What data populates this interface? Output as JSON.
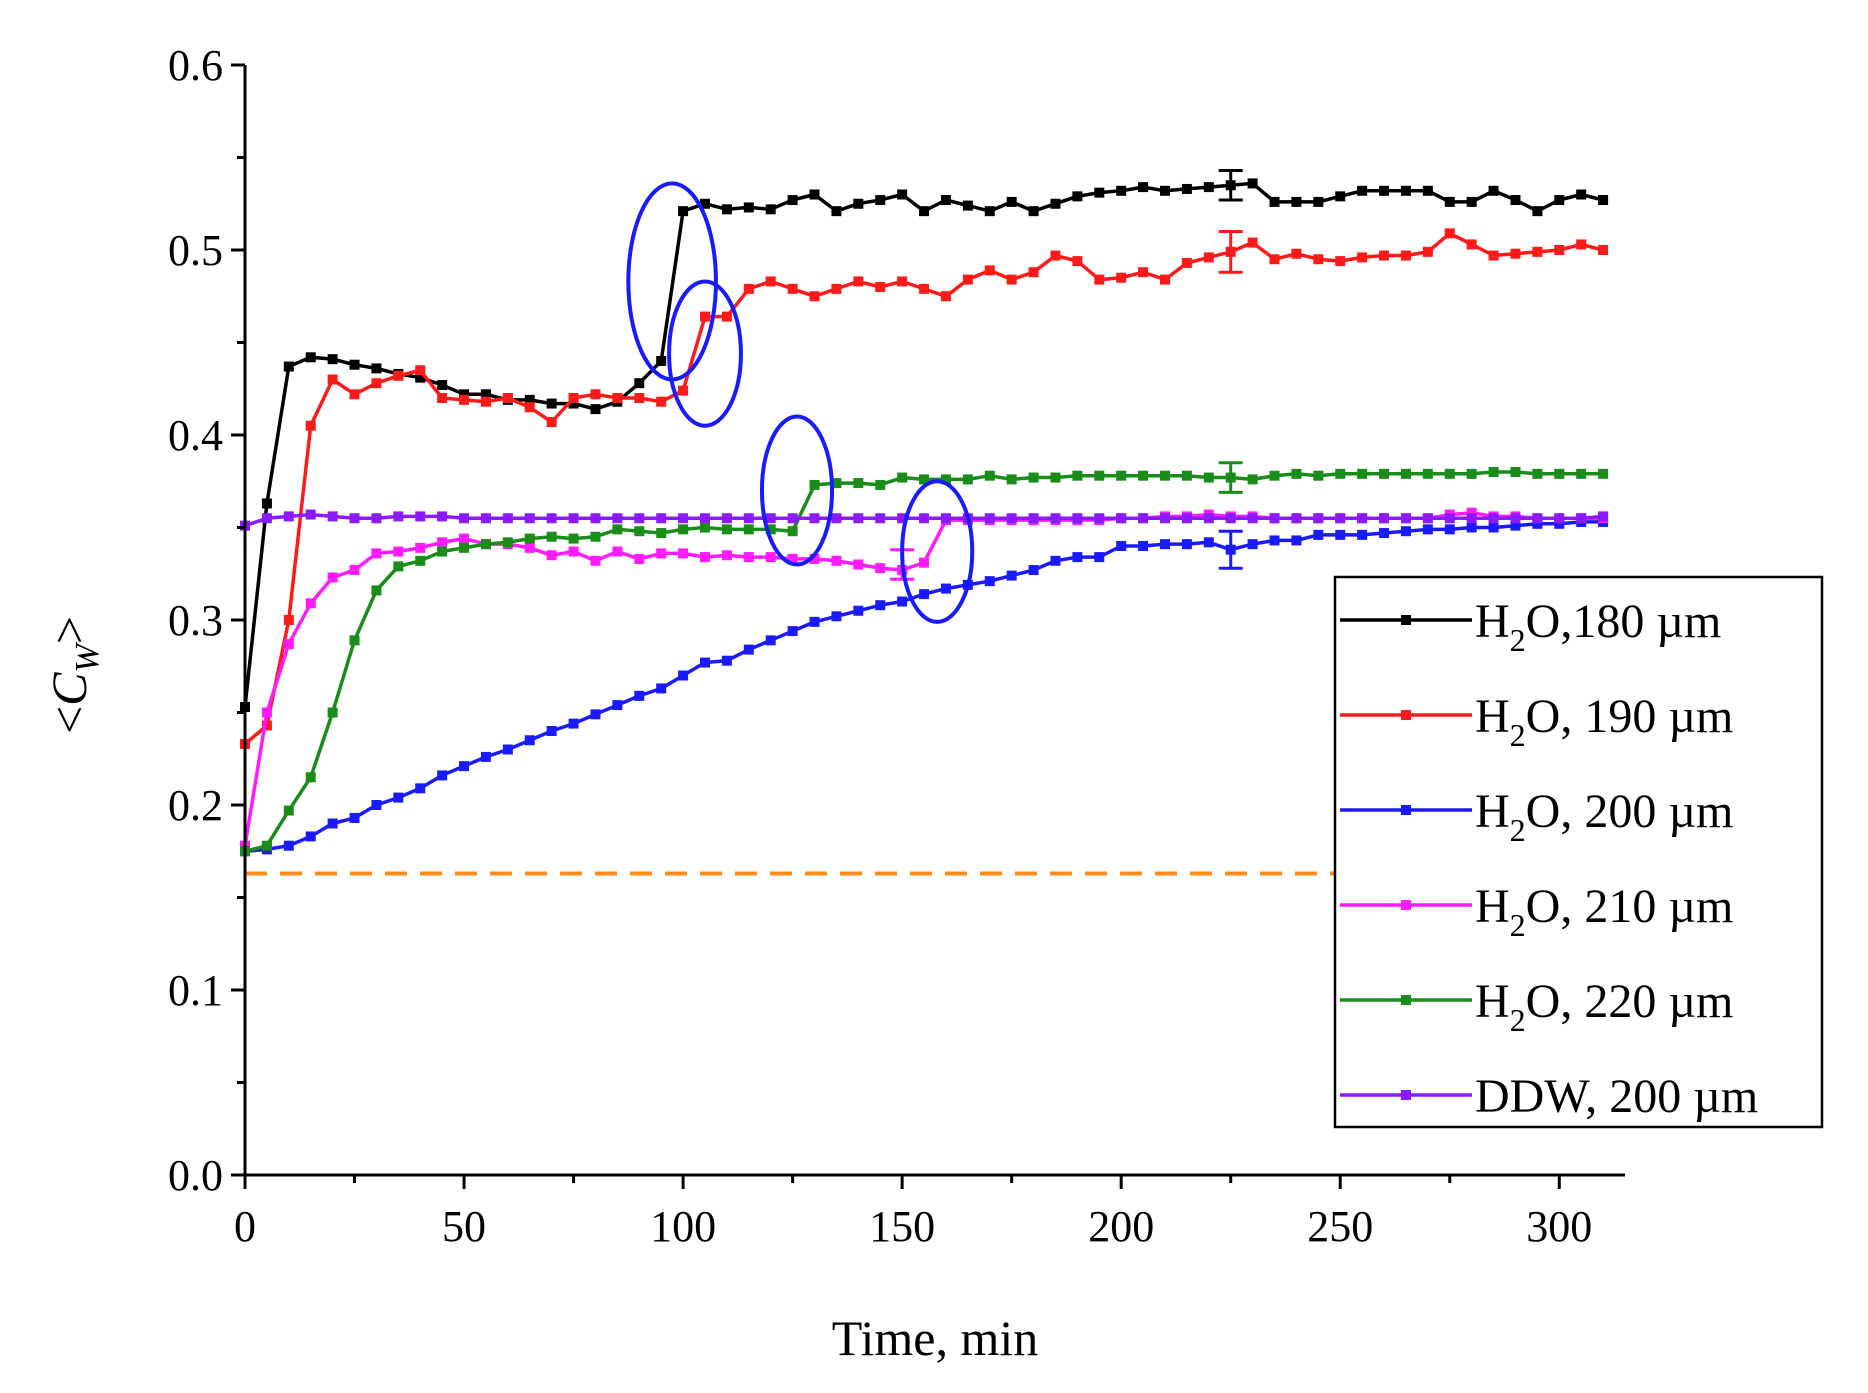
{
  "chart_data": {
    "type": "line",
    "title": "",
    "xlabel": "Time, min",
    "ylabel": "<C_W>",
    "ylabel_parts": {
      "open": "<",
      "var": "C",
      "sub": "W",
      "close": ">"
    },
    "xlim": [
      0,
      315
    ],
    "ylim": [
      0,
      0.6
    ],
    "xticks": [
      "0",
      "50",
      "100",
      "150",
      "200",
      "250",
      "300"
    ],
    "yticks": [
      "0.0",
      "0.1",
      "0.2",
      "0.3",
      "0.4",
      "0.5",
      "0.6"
    ],
    "grid": false,
    "legend_position": "right",
    "reference_line": {
      "y": 0.163,
      "x_range": [
        0,
        250
      ],
      "color": "#ff8c1a",
      "style": "dashed"
    },
    "series": [
      {
        "name": "H2O,180 µm",
        "legend": {
          "a": "H",
          "sub": "2",
          "b": "O,180 µm"
        },
        "color": "#000000",
        "x": [
          0,
          5,
          10,
          15,
          20,
          25,
          30,
          35,
          40,
          45,
          50,
          55,
          60,
          65,
          70,
          75,
          80,
          85,
          90,
          95,
          100,
          105,
          110,
          115,
          120,
          125,
          130,
          135,
          140,
          145,
          150,
          155,
          160,
          165,
          170,
          175,
          180,
          185,
          190,
          195,
          200,
          205,
          210,
          215,
          220,
          225,
          230,
          235,
          240,
          245,
          250,
          255,
          260,
          265,
          270,
          275,
          280,
          285,
          290,
          295,
          300,
          305,
          310
        ],
        "y": [
          0.253,
          0.363,
          0.437,
          0.442,
          0.441,
          0.438,
          0.436,
          0.433,
          0.431,
          0.427,
          0.422,
          0.422,
          0.419,
          0.419,
          0.417,
          0.417,
          0.414,
          0.418,
          0.428,
          0.44,
          0.521,
          0.525,
          0.522,
          0.523,
          0.522,
          0.527,
          0.53,
          0.521,
          0.525,
          0.527,
          0.53,
          0.521,
          0.527,
          0.524,
          0.521,
          0.526,
          0.521,
          0.525,
          0.529,
          0.531,
          0.532,
          0.534,
          0.532,
          0.533,
          0.534,
          0.535,
          0.536,
          0.526,
          0.526,
          0.526,
          0.529,
          0.532,
          0.532,
          0.532,
          0.532,
          0.526,
          0.526,
          0.532,
          0.527,
          0.521,
          0.527,
          0.53,
          0.527
        ],
        "error_bars": [
          {
            "x": 225,
            "y": 0.535,
            "err": 0.008
          }
        ]
      },
      {
        "name": "H2O, 190 µm",
        "legend": {
          "a": "H",
          "sub": "2",
          "b": "O, 190 µm"
        },
        "color": "#ff1a1a",
        "x": [
          0,
          5,
          10,
          15,
          20,
          25,
          30,
          35,
          40,
          45,
          50,
          55,
          60,
          65,
          70,
          75,
          80,
          85,
          90,
          95,
          100,
          105,
          110,
          115,
          120,
          125,
          130,
          135,
          140,
          145,
          150,
          155,
          160,
          165,
          170,
          175,
          180,
          185,
          190,
          195,
          200,
          205,
          210,
          215,
          220,
          225,
          230,
          235,
          240,
          245,
          250,
          255,
          260,
          265,
          270,
          275,
          280,
          285,
          290,
          295,
          300,
          305,
          310
        ],
        "y": [
          0.233,
          0.243,
          0.3,
          0.405,
          0.43,
          0.422,
          0.428,
          0.432,
          0.435,
          0.42,
          0.419,
          0.418,
          0.42,
          0.415,
          0.407,
          0.42,
          0.422,
          0.42,
          0.42,
          0.418,
          0.424,
          0.464,
          0.464,
          0.479,
          0.483,
          0.479,
          0.475,
          0.479,
          0.483,
          0.48,
          0.483,
          0.479,
          0.475,
          0.484,
          0.489,
          0.484,
          0.488,
          0.497,
          0.494,
          0.484,
          0.485,
          0.488,
          0.484,
          0.493,
          0.496,
          0.499,
          0.504,
          0.495,
          0.498,
          0.495,
          0.494,
          0.496,
          0.497,
          0.497,
          0.499,
          0.509,
          0.503,
          0.497,
          0.498,
          0.499,
          0.5,
          0.503,
          0.5
        ],
        "error_bars": [
          {
            "x": 225,
            "y": 0.499,
            "err": 0.011
          }
        ]
      },
      {
        "name": "H2O, 200 µm",
        "legend": {
          "a": "H",
          "sub": "2",
          "b": "O, 200 µm"
        },
        "color": "#1a1aff",
        "x": [
          0,
          5,
          10,
          15,
          20,
          25,
          30,
          35,
          40,
          45,
          50,
          55,
          60,
          65,
          70,
          75,
          80,
          85,
          90,
          95,
          100,
          105,
          110,
          115,
          120,
          125,
          130,
          135,
          140,
          145,
          150,
          155,
          160,
          165,
          170,
          175,
          180,
          185,
          190,
          195,
          200,
          205,
          210,
          215,
          220,
          225,
          230,
          235,
          240,
          245,
          250,
          255,
          260,
          265,
          270,
          275,
          280,
          285,
          290,
          295,
          300,
          305,
          310
        ],
        "y": [
          0.175,
          0.176,
          0.178,
          0.183,
          0.19,
          0.193,
          0.2,
          0.204,
          0.209,
          0.216,
          0.221,
          0.226,
          0.23,
          0.235,
          0.24,
          0.244,
          0.249,
          0.254,
          0.259,
          0.263,
          0.27,
          0.277,
          0.278,
          0.284,
          0.289,
          0.294,
          0.299,
          0.302,
          0.305,
          0.308,
          0.31,
          0.314,
          0.317,
          0.319,
          0.321,
          0.324,
          0.327,
          0.332,
          0.334,
          0.334,
          0.34,
          0.34,
          0.341,
          0.341,
          0.342,
          0.338,
          0.341,
          0.343,
          0.343,
          0.346,
          0.346,
          0.346,
          0.347,
          0.348,
          0.349,
          0.349,
          0.35,
          0.35,
          0.351,
          0.352,
          0.352,
          0.353,
          0.353
        ],
        "error_bars": [
          {
            "x": 225,
            "y": 0.338,
            "err": 0.01
          }
        ]
      },
      {
        "name": "H2O, 210 µm",
        "legend": {
          "a": "H",
          "sub": "2",
          "b": "O, 210 µm"
        },
        "color": "#ff1aff",
        "x": [
          0,
          5,
          10,
          15,
          20,
          25,
          30,
          35,
          40,
          45,
          50,
          55,
          60,
          65,
          70,
          75,
          80,
          85,
          90,
          95,
          100,
          105,
          110,
          115,
          120,
          125,
          130,
          135,
          140,
          145,
          150,
          155,
          160,
          165,
          170,
          175,
          180,
          185,
          190,
          195,
          200,
          205,
          210,
          215,
          220,
          225,
          230,
          235,
          240,
          245,
          250,
          255,
          260,
          265,
          270,
          275,
          280,
          285,
          290,
          295,
          300,
          305,
          310
        ],
        "y": [
          0.178,
          0.25,
          0.287,
          0.309,
          0.323,
          0.327,
          0.336,
          0.337,
          0.339,
          0.342,
          0.344,
          0.341,
          0.341,
          0.339,
          0.335,
          0.337,
          0.332,
          0.337,
          0.333,
          0.336,
          0.336,
          0.334,
          0.335,
          0.334,
          0.334,
          0.333,
          0.333,
          0.332,
          0.33,
          0.328,
          0.327,
          0.331,
          0.354,
          0.354,
          0.354,
          0.354,
          0.354,
          0.354,
          0.354,
          0.354,
          0.355,
          0.355,
          0.356,
          0.356,
          0.357,
          0.356,
          0.356,
          0.355,
          0.355,
          0.355,
          0.355,
          0.355,
          0.355,
          0.355,
          0.355,
          0.357,
          0.358,
          0.356,
          0.356,
          0.355,
          0.355,
          0.355,
          0.355
        ],
        "error_bars": [
          {
            "x": 150,
            "y": 0.33,
            "err": 0.008
          }
        ]
      },
      {
        "name": "H2O, 220 µm",
        "legend": {
          "a": "H",
          "sub": "2",
          "b": "O, 220 µm"
        },
        "color": "#1a8c1a",
        "x": [
          0,
          5,
          10,
          15,
          20,
          25,
          30,
          35,
          40,
          45,
          50,
          55,
          60,
          65,
          70,
          75,
          80,
          85,
          90,
          95,
          100,
          105,
          110,
          115,
          120,
          125,
          130,
          135,
          140,
          145,
          150,
          155,
          160,
          165,
          170,
          175,
          180,
          185,
          190,
          195,
          200,
          205,
          210,
          215,
          220,
          225,
          230,
          235,
          240,
          245,
          250,
          255,
          260,
          265,
          270,
          275,
          280,
          285,
          290,
          295,
          300,
          305,
          310
        ],
        "y": [
          0.175,
          0.178,
          0.197,
          0.215,
          0.25,
          0.289,
          0.316,
          0.329,
          0.332,
          0.337,
          0.339,
          0.341,
          0.342,
          0.344,
          0.345,
          0.344,
          0.345,
          0.349,
          0.348,
          0.347,
          0.349,
          0.35,
          0.349,
          0.349,
          0.349,
          0.348,
          0.373,
          0.374,
          0.374,
          0.373,
          0.377,
          0.376,
          0.376,
          0.376,
          0.378,
          0.376,
          0.377,
          0.377,
          0.378,
          0.378,
          0.378,
          0.378,
          0.378,
          0.378,
          0.377,
          0.377,
          0.376,
          0.378,
          0.379,
          0.378,
          0.379,
          0.379,
          0.379,
          0.379,
          0.379,
          0.379,
          0.379,
          0.38,
          0.38,
          0.379,
          0.379,
          0.379,
          0.379
        ],
        "error_bars": [
          {
            "x": 225,
            "y": 0.377,
            "err": 0.008
          }
        ]
      },
      {
        "name": "DDW, 200 µm",
        "legend": {
          "a": "DDW, 200 µm",
          "sub": "",
          "b": ""
        },
        "color": "#8c1aff",
        "x": [
          0,
          5,
          10,
          15,
          20,
          25,
          30,
          35,
          40,
          45,
          50,
          55,
          60,
          65,
          70,
          75,
          80,
          85,
          90,
          95,
          100,
          105,
          110,
          115,
          120,
          125,
          130,
          135,
          140,
          145,
          150,
          155,
          160,
          165,
          170,
          175,
          180,
          185,
          190,
          195,
          200,
          205,
          210,
          215,
          220,
          225,
          230,
          235,
          240,
          245,
          250,
          255,
          260,
          265,
          270,
          275,
          280,
          285,
          290,
          295,
          300,
          305,
          310
        ],
        "y": [
          0.351,
          0.355,
          0.356,
          0.357,
          0.356,
          0.355,
          0.355,
          0.356,
          0.356,
          0.356,
          0.355,
          0.355,
          0.355,
          0.355,
          0.355,
          0.355,
          0.355,
          0.355,
          0.355,
          0.355,
          0.355,
          0.355,
          0.355,
          0.355,
          0.355,
          0.355,
          0.355,
          0.355,
          0.355,
          0.355,
          0.355,
          0.355,
          0.355,
          0.355,
          0.355,
          0.355,
          0.355,
          0.355,
          0.355,
          0.355,
          0.355,
          0.355,
          0.355,
          0.355,
          0.355,
          0.355,
          0.355,
          0.355,
          0.355,
          0.355,
          0.355,
          0.355,
          0.355,
          0.355,
          0.355,
          0.355,
          0.355,
          0.355,
          0.355,
          0.355,
          0.355,
          0.355,
          0.356
        ],
        "error_bars": []
      }
    ],
    "annotations": [
      {
        "type": "ellipse",
        "cx": 97.5,
        "cy": 0.483,
        "rx": 10,
        "ry": 0.053,
        "rotate": 0,
        "color": "#1a1aff"
      },
      {
        "type": "ellipse",
        "cx": 105,
        "cy": 0.444,
        "rx": 8.2,
        "ry": 0.039,
        "rotate": 0,
        "color": "#1a1aff"
      },
      {
        "type": "ellipse",
        "cx": 126,
        "cy": 0.37,
        "rx": 8,
        "ry": 0.04,
        "rotate": 0,
        "color": "#1a1aff"
      },
      {
        "type": "ellipse",
        "cx": 158,
        "cy": 0.337,
        "rx": 8,
        "ry": 0.038,
        "rotate": 0,
        "color": "#1a1aff"
      }
    ]
  }
}
